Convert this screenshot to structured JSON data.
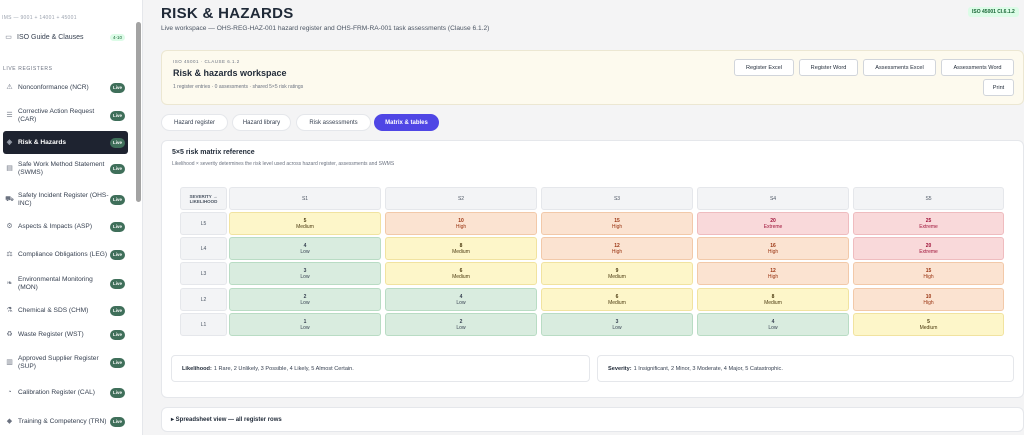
{
  "sidebar": {
    "top_text": "IMS — 9001 + 14001 + 45001",
    "guide": {
      "label": "ISO Guide & Clauses",
      "badge": "4-10"
    },
    "section_label": "LIVE REGISTERS",
    "items": [
      {
        "label": "Nonconformance (NCR)",
        "badge": "Live",
        "icon": "warning-icon",
        "glyph": "⚠"
      },
      {
        "label": "Corrective Action Request (CAR)",
        "badge": "Live",
        "icon": "list-icon",
        "glyph": "☰"
      },
      {
        "label": "Risk & Hazards",
        "badge": "Live",
        "icon": "hazard-icon",
        "glyph": "◈",
        "active": true
      },
      {
        "label": "Safe Work Method Statement (SWMS)",
        "badge": "Live",
        "icon": "document-icon",
        "glyph": "▤"
      },
      {
        "label": "Safety Incident Register (OHS-INC)",
        "badge": "Live",
        "icon": "vehicle-icon",
        "glyph": "⛟"
      },
      {
        "label": "Aspects & Impacts (ASP)",
        "badge": "Live",
        "icon": "gear-icon",
        "glyph": "⚙"
      },
      {
        "label": "Compliance Obligations (LEG)",
        "badge": "Live",
        "icon": "law-icon",
        "glyph": "⚖"
      },
      {
        "label": "Environmental Monitoring (MON)",
        "badge": "Live",
        "icon": "leaf-icon",
        "glyph": "❧"
      },
      {
        "label": "Chemical & SDS (CHM)",
        "badge": "Live",
        "icon": "flask-icon",
        "glyph": "⚗"
      },
      {
        "label": "Waste Register (WST)",
        "badge": "Live",
        "icon": "recycle-icon",
        "glyph": "♻"
      },
      {
        "label": "Approved Supplier Register (SUP)",
        "badge": "Live",
        "icon": "building-icon",
        "glyph": "▥"
      },
      {
        "label": "Calibration Register (CAL)",
        "badge": "Live",
        "icon": "gauge-icon",
        "glyph": "◔"
      },
      {
        "label": "Training & Competency (TRN)",
        "badge": "Live",
        "icon": "graduation-icon",
        "glyph": "◆"
      }
    ]
  },
  "header": {
    "title": "RISK & HAZARDS",
    "subtitle": "Live workspace — OHS-REG-HAZ-001 hazard register and OHS-FRM-RA-001 task assessments (Clause 6.1.2)",
    "iso_badge": "ISO 45001 Cl.6.1.2"
  },
  "workspace": {
    "tag": "ISO 45001 · CLAUSE 6.1.2",
    "title": "Risk & hazards workspace",
    "meta": "1 register entries · 0 assessments · shared 5×5 risk ratings",
    "buttons": {
      "register_excel": "Register Excel",
      "register_word": "Register Word",
      "assessments_excel": "Assessments Excel",
      "assessments_word": "Assessments Word",
      "print": "Print"
    }
  },
  "tabs": [
    {
      "label": "Hazard register"
    },
    {
      "label": "Hazard library"
    },
    {
      "label": "Risk assessments"
    },
    {
      "label": "Matrix & tables",
      "active": true
    }
  ],
  "matrix": {
    "title": "5×5 risk matrix reference",
    "subtitle": "Likelihood × severity determines the risk level used across hazard register, assessments and SWMS",
    "corner_top": "SEVERITY →",
    "corner_bottom": "LIKELIHOOD",
    "severity_headers": [
      "S1",
      "S2",
      "S3",
      "S4",
      "S5"
    ],
    "rows": [
      {
        "label": "L5",
        "cells": [
          [
            "5",
            "Medium"
          ],
          [
            "10",
            "High"
          ],
          [
            "15",
            "High"
          ],
          [
            "20",
            "Extreme"
          ],
          [
            "25",
            "Extreme"
          ]
        ]
      },
      {
        "label": "L4",
        "cells": [
          [
            "4",
            "Low"
          ],
          [
            "8",
            "Medium"
          ],
          [
            "12",
            "High"
          ],
          [
            "16",
            "High"
          ],
          [
            "20",
            "Extreme"
          ]
        ]
      },
      {
        "label": "L3",
        "cells": [
          [
            "3",
            "Low"
          ],
          [
            "6",
            "Medium"
          ],
          [
            "9",
            "Medium"
          ],
          [
            "12",
            "High"
          ],
          [
            "15",
            "High"
          ]
        ]
      },
      {
        "label": "L2",
        "cells": [
          [
            "2",
            "Low"
          ],
          [
            "4",
            "Low"
          ],
          [
            "6",
            "Medium"
          ],
          [
            "8",
            "Medium"
          ],
          [
            "10",
            "High"
          ]
        ]
      },
      {
        "label": "L1",
        "cells": [
          [
            "1",
            "Low"
          ],
          [
            "2",
            "Low"
          ],
          [
            "3",
            "Low"
          ],
          [
            "4",
            "Low"
          ],
          [
            "5",
            "Medium"
          ]
        ]
      }
    ],
    "level_colors": {
      "Low": {
        "bg": "#d9ecdf",
        "border": "#b9dcc4",
        "fg": "#374151"
      },
      "Medium": {
        "bg": "#fdf6c9",
        "border": "#f1e3a0",
        "fg": "#4b3a10"
      },
      "High": {
        "bg": "#fbe3d1",
        "border": "#f2c9a9",
        "fg": "#9a3412"
      },
      "Extreme": {
        "bg": "#f9d9da",
        "border": "#efbcbf",
        "fg": "#9f1239"
      }
    },
    "likelihood_legend": {
      "label": "Likelihood:",
      "text": "1 Rare, 2 Unlikely, 3 Possible, 4 Likely, 5 Almost Certain."
    },
    "severity_legend": {
      "label": "Severity:",
      "text": "1 Insignificant, 2 Minor, 3 Moderate, 4 Major, 5 Catastrophic."
    }
  },
  "spreadsheet": {
    "label": "▸ Spreadsheet view — all register rows"
  }
}
